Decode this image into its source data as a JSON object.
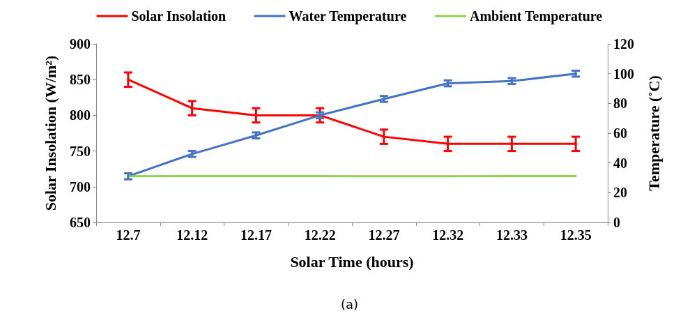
{
  "chart_data": {
    "type": "line",
    "xlabel": "Solar Time (hours)",
    "ylabel": "Solar Insolation (W/m²)",
    "y2label": "Temperature (˚C)",
    "categories": [
      "12.7",
      "12.12",
      "12.17",
      "12.22",
      "12.27",
      "12.32",
      "12.33",
      "12.35"
    ],
    "series": [
      {
        "name": "Solar Insolation",
        "color": "#ff0000",
        "values": [
          850,
          810,
          800,
          800,
          770,
          760,
          760,
          760
        ],
        "errors": [
          10,
          10,
          10,
          10,
          10,
          10,
          10,
          10
        ]
      },
      {
        "name": "Water Temperature",
        "color": "#4472c4",
        "axis": "y2",
        "values": [
          31,
          46,
          58.5,
          72,
          83,
          93.5,
          95,
          100
        ],
        "errors": [
          2,
          2,
          2,
          2,
          2,
          2,
          2,
          2
        ]
      },
      {
        "name": "Ambient Temperature",
        "color": "#92d050",
        "axis": "y2",
        "values": [
          31,
          31.2,
          31.2,
          31.2,
          31,
          31,
          31.2,
          31.2
        ]
      }
    ],
    "ylim": [
      650,
      900
    ],
    "yticks": [
      650,
      700,
      750,
      800,
      850,
      900
    ],
    "y2lim": [
      0,
      120
    ],
    "y2ticks": [
      0,
      20,
      40,
      60,
      80,
      100,
      120
    ],
    "legend": "top",
    "grid": false,
    "marker": "none",
    "line_style": "solid",
    "annotations": [
      "(a)"
    ]
  }
}
